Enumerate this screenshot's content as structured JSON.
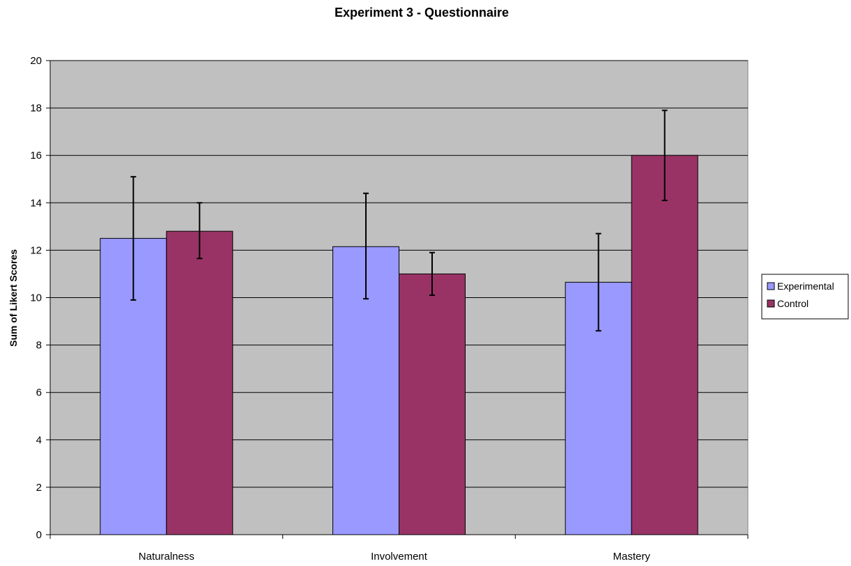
{
  "chart_data": {
    "type": "bar",
    "title": "Experiment 3 - Questionnaire",
    "xlabel": "",
    "ylabel": "Sum of Likert Scores",
    "ylim": [
      0,
      20
    ],
    "yticks": [
      0,
      2,
      4,
      6,
      8,
      10,
      12,
      14,
      16,
      18,
      20
    ],
    "grid": true,
    "legend_position": "right",
    "plot_background": "#c0c0c0",
    "categories": [
      "Naturalness",
      "Involvement",
      "Mastery"
    ],
    "series": [
      {
        "name": "Experimental",
        "color": "#9999ff",
        "values": [
          12.5,
          12.15,
          10.65
        ],
        "error_low": [
          9.9,
          9.95,
          8.6
        ],
        "error_high": [
          15.1,
          14.4,
          12.7
        ]
      },
      {
        "name": "Control",
        "color": "#993366",
        "values": [
          12.8,
          11.0,
          16.0
        ],
        "error_low": [
          11.65,
          10.1,
          14.1
        ],
        "error_high": [
          14.0,
          11.9,
          17.9
        ]
      }
    ]
  }
}
